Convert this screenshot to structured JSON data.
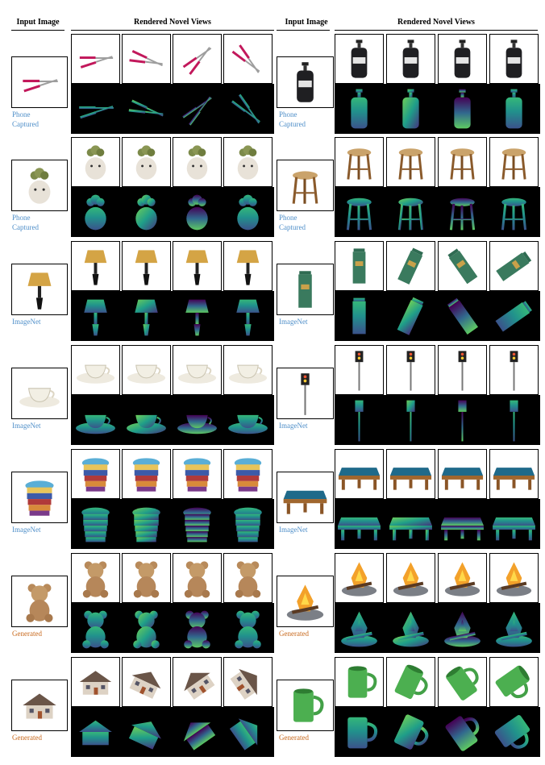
{
  "headers": {
    "input_left": "Input Image",
    "views_left": "Rendered Novel Views",
    "input_right": "Input Image",
    "views_right": "Rendered Novel Views"
  },
  "left_rows": [
    {
      "object": "hedge-shears",
      "caption": "Phone\nCaptured",
      "caption_color": "blue"
    },
    {
      "object": "succulent-plush",
      "caption": "Phone\nCaptured",
      "caption_color": "blue"
    },
    {
      "object": "table-lamp",
      "caption": "ImageNet",
      "caption_color": "blue"
    },
    {
      "object": "teacup",
      "caption": "ImageNet",
      "caption_color": "blue"
    },
    {
      "object": "stacked-cups",
      "caption": "ImageNet",
      "caption_color": "blue"
    },
    {
      "object": "teddy-bear",
      "caption": "Generated",
      "caption_color": "orange"
    },
    {
      "object": "house",
      "caption": "Generated",
      "caption_color": "orange"
    }
  ],
  "right_rows": [
    {
      "object": "soap-bottle",
      "caption": "Phone\nCaptured",
      "caption_color": "blue"
    },
    {
      "object": "wooden-stool",
      "caption": "Phone\nCaptured",
      "caption_color": "blue"
    },
    {
      "object": "mailbox-pillar",
      "caption": "ImageNet",
      "caption_color": "blue"
    },
    {
      "object": "traffic-light",
      "caption": "ImageNet",
      "caption_color": "blue"
    },
    {
      "object": "pool-table",
      "caption": "ImageNet",
      "caption_color": "blue"
    },
    {
      "object": "campfire",
      "caption": "Generated",
      "caption_color": "orange"
    },
    {
      "object": "green-mug",
      "caption": "Generated",
      "caption_color": "orange"
    }
  ]
}
